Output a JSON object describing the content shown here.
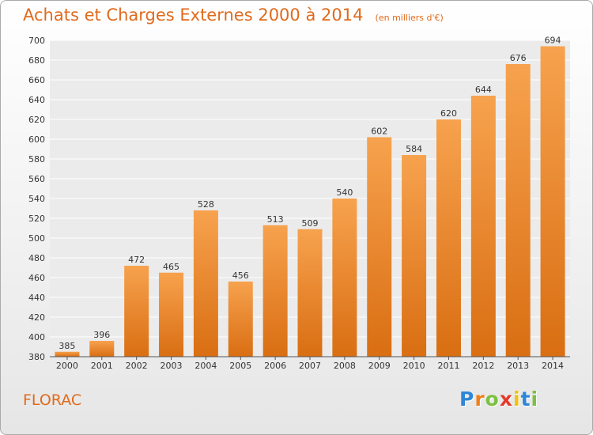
{
  "header": {
    "title": "Achats et Charges Externes 2000 à 2014",
    "subtitle": "(en milliers d'€)"
  },
  "footer": {
    "city": "FLORAC",
    "logo_text": "Proxiti",
    "logo_letters": [
      {
        "char": "P",
        "color": "#2e86d6"
      },
      {
        "char": "r",
        "color": "#f07f1a"
      },
      {
        "char": "o",
        "color": "#7cc142"
      },
      {
        "char": "x",
        "color": "#e23b2b"
      },
      {
        "char": "i",
        "color": "#f5c200"
      },
      {
        "char": "t",
        "color": "#2e86d6"
      },
      {
        "char": "i",
        "color": "#7cc142"
      }
    ]
  },
  "chart_data": {
    "type": "bar",
    "categories": [
      "2000",
      "2001",
      "2002",
      "2003",
      "2004",
      "2005",
      "2006",
      "2007",
      "2008",
      "2009",
      "2010",
      "2011",
      "2012",
      "2013",
      "2014"
    ],
    "values": [
      385,
      396,
      472,
      465,
      528,
      456,
      513,
      509,
      540,
      602,
      584,
      620,
      644,
      676,
      694
    ],
    "data_labels": [
      "385",
      "396",
      "472",
      "465",
      "528",
      "456",
      "513",
      "509",
      "540",
      "602",
      "584",
      "620",
      "644",
      "676",
      "694"
    ],
    "ylim": [
      380,
      700
    ],
    "yticks": [
      380,
      400,
      420,
      440,
      460,
      480,
      500,
      520,
      540,
      560,
      580,
      600,
      620,
      640,
      660,
      680,
      700
    ],
    "grid": true,
    "bar_color_top": "#f7a24e",
    "bar_color_bottom": "#d96e12"
  }
}
